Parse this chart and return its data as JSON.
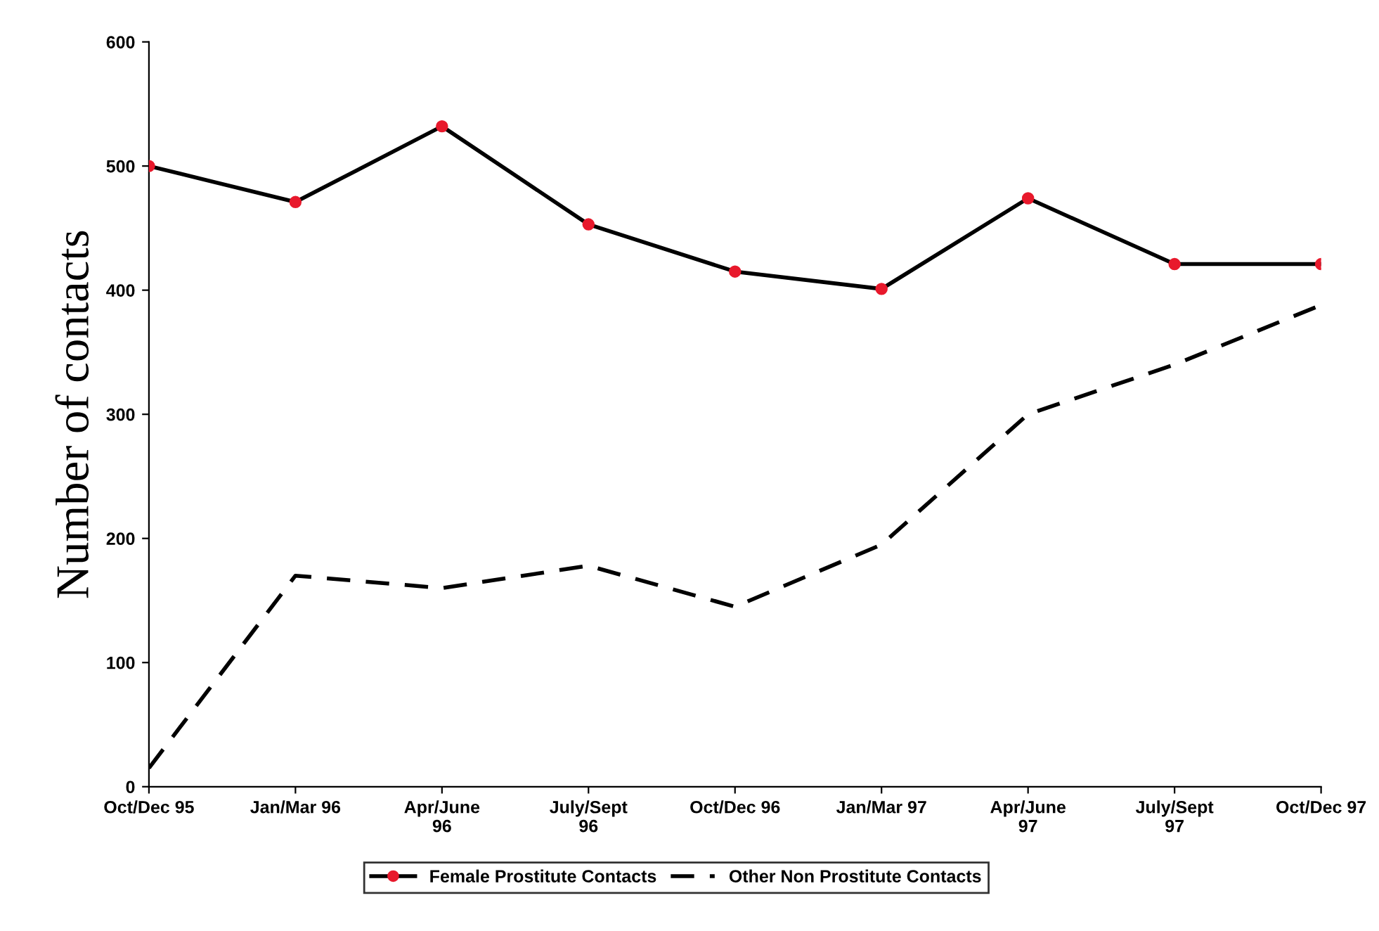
{
  "chart_data": {
    "type": "line",
    "ylabel": "Number of contacts",
    "categories": [
      "Oct/Dec 95",
      "Jan/Mar 96",
      "Apr/June\n96",
      "July/Sept\n96",
      "Oct/Dec 96",
      "Jan/Mar 97",
      "Apr/June\n97",
      "July/Sept\n97",
      "Oct/Dec 97"
    ],
    "series": [
      {
        "name": "Female Prostitute Contacts",
        "color": "#000000",
        "colors": [
          "#e8192c",
          "#e8192c",
          "#e8192c",
          "#e8192c",
          "#e8192c",
          "#e8192c",
          "#e8192c",
          "#e8192c",
          "#e8192c"
        ],
        "marker": "circle",
        "line_style": "solid",
        "values": [
          500,
          471,
          532,
          453,
          415,
          401,
          474,
          421,
          421
        ]
      },
      {
        "name": "Other Non Prostitute Contacts",
        "color": "#000000",
        "marker": "none",
        "line_style": "dashed",
        "values": [
          15,
          170,
          160,
          178,
          145,
          195,
          300,
          340,
          388
        ]
      }
    ],
    "ylim": [
      0,
      600
    ],
    "yticks": [
      0,
      100,
      200,
      300,
      400,
      500,
      600
    ],
    "grid": false,
    "legend": "bottom"
  }
}
